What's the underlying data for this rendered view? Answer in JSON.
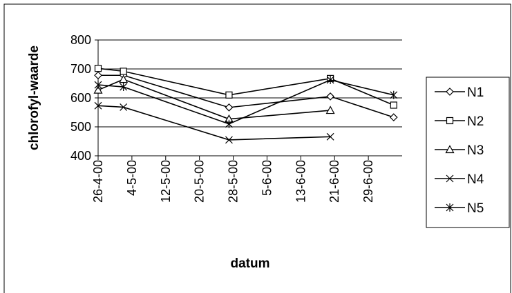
{
  "chart_data": {
    "type": "line",
    "title": "",
    "xlabel": "datum",
    "ylabel": "chlorofyl-waarde",
    "x_tick_labels": [
      "26-4-00",
      "4-5-00",
      "12-5-00",
      "20-5-00",
      "28-5-00",
      "5-6-00",
      "13-6-00",
      "21-6-00",
      "29-6-00"
    ],
    "x_ticks": [
      "2000-04-26",
      "2000-05-04",
      "2000-05-12",
      "2000-05-20",
      "2000-05-28",
      "2000-06-05",
      "2000-06-13",
      "2000-06-21",
      "2000-06-29"
    ],
    "xlim": [
      "2000-04-26",
      "2000-07-07"
    ],
    "ylim": [
      400,
      800
    ],
    "y_ticks": [
      400,
      500,
      600,
      700,
      800
    ],
    "grid": "horizontal",
    "legend_position": "right",
    "series": [
      {
        "name": "N1",
        "marker": "diamond",
        "color": "#000000",
        "points": [
          [
            "2000-04-26",
            678
          ],
          [
            "2000-05-02",
            678
          ],
          [
            "2000-05-27",
            567
          ],
          [
            "2000-06-20",
            605
          ],
          [
            "2000-07-05",
            533
          ]
        ]
      },
      {
        "name": "N2",
        "marker": "square",
        "color": "#000000",
        "points": [
          [
            "2000-04-26",
            702
          ],
          [
            "2000-05-02",
            692
          ],
          [
            "2000-05-27",
            610
          ],
          [
            "2000-06-20",
            667
          ],
          [
            "2000-07-05",
            575
          ]
        ]
      },
      {
        "name": "N3",
        "marker": "triangle",
        "color": "#000000",
        "points": [
          [
            "2000-04-26",
            627
          ],
          [
            "2000-05-02",
            664
          ],
          [
            "2000-05-27",
            527
          ],
          [
            "2000-06-20",
            557
          ]
        ]
      },
      {
        "name": "N4",
        "marker": "x",
        "color": "#000000",
        "points": [
          [
            "2000-04-26",
            573
          ],
          [
            "2000-05-02",
            568
          ],
          [
            "2000-05-27",
            455
          ],
          [
            "2000-06-20",
            466
          ]
        ]
      },
      {
        "name": "N5",
        "marker": "star",
        "color": "#000000",
        "points": [
          [
            "2000-04-26",
            645
          ],
          [
            "2000-05-02",
            638
          ],
          [
            "2000-05-27",
            510
          ],
          [
            "2000-06-20",
            662
          ],
          [
            "2000-07-05",
            610
          ]
        ]
      }
    ]
  }
}
